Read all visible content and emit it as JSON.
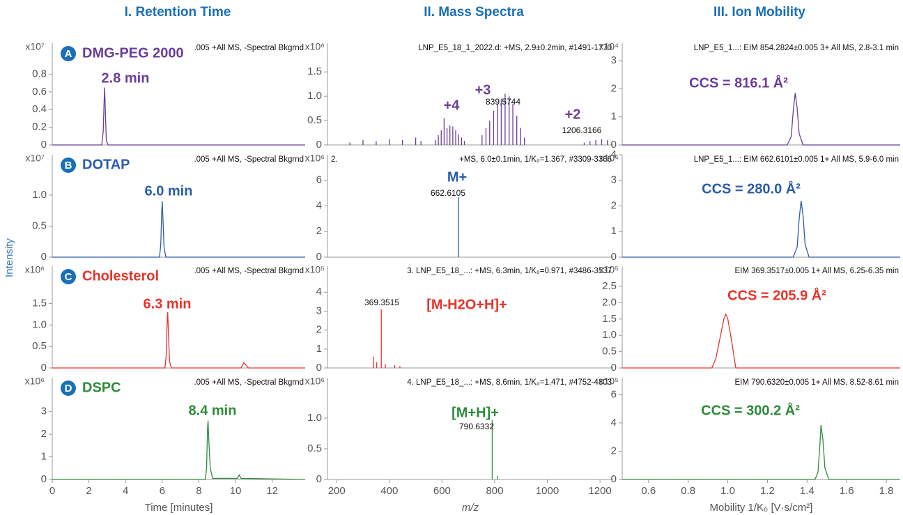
{
  "column_titles": [
    "I. Retention Time",
    "II. Mass Spectra",
    "III. Ion Mobility"
  ],
  "y_axis_label": "Intensity",
  "chart_data": [
    {
      "type": "line",
      "badge": "A",
      "title": "DMG-PEG 2000",
      "header": ".005 +All MS, -Spectral Bkgrnd",
      "y_multiplier": "x10⁷",
      "annotations": [
        "2.8 min"
      ],
      "color": "#6a3d9a",
      "x": [
        0,
        2.7,
        2.78,
        2.83,
        2.86,
        2.9,
        2.95,
        3.05,
        13.8
      ],
      "values": [
        0,
        0,
        0.15,
        0.5,
        0.65,
        0.35,
        0.05,
        0,
        0
      ],
      "xlim": [
        0,
        13.8
      ],
      "ylim": [
        0,
        1.15
      ],
      "yticks": [
        0,
        0.2,
        0.4,
        0.6,
        0.8
      ]
    },
    {
      "type": "line",
      "badge": "B",
      "title": "DOTAP",
      "header": ".005 +All MS, -Spectral Bkgrnd",
      "y_multiplier": "x10⁷",
      "annotations": [
        "6.0 min"
      ],
      "color": "#2a5caa",
      "x": [
        0,
        5.85,
        5.92,
        5.97,
        6.0,
        6.05,
        6.1,
        6.2,
        13.8
      ],
      "values": [
        0,
        0,
        0.2,
        0.7,
        0.9,
        0.55,
        0.15,
        0,
        0
      ],
      "xlim": [
        0,
        13.8
      ],
      "ylim": [
        0,
        1.65
      ],
      "yticks": [
        0,
        0.5,
        {
          "value": 1,
          "label": "1.0"
        }
      ]
    },
    {
      "type": "line",
      "badge": "C",
      "title": "Cholesterol",
      "header": ".005 +All MS, -Spectral Bkgrnd",
      "y_multiplier": "x10⁶",
      "annotations": [
        "6.3 min"
      ],
      "color": "#e8332a",
      "x": [
        0,
        6.15,
        6.22,
        6.27,
        6.3,
        6.35,
        6.4,
        6.5,
        10.3,
        10.45,
        10.55,
        10.7,
        13.8
      ],
      "values": [
        0,
        0,
        0.3,
        1.1,
        1.3,
        0.7,
        0.15,
        0,
        0,
        0.12,
        0.08,
        0,
        0
      ],
      "xlim": [
        0,
        13.8
      ],
      "ylim": [
        0,
        2.37
      ],
      "yticks": [
        0,
        0.5,
        {
          "value": 1,
          "label": "1.0"
        },
        1.5
      ]
    },
    {
      "type": "line",
      "badge": "D",
      "title": "DSPC",
      "header": ".005 +All MS, -Spectral Bkgrnd",
      "y_multiplier": "x10⁶",
      "annotations": [
        "8.4 min"
      ],
      "color": "#2e8b3a",
      "x": [
        0,
        8.35,
        8.42,
        8.47,
        8.5,
        8.55,
        8.62,
        8.75,
        10.1,
        10.2,
        10.3,
        13.8
      ],
      "values": [
        0,
        0,
        0.5,
        2.2,
        2.6,
        1.6,
        0.5,
        0.05,
        0.05,
        0.2,
        0.05,
        0
      ],
      "xlim": [
        0,
        13.8
      ],
      "ylim": [
        0,
        4.5
      ],
      "yticks": [
        0,
        1,
        2,
        3
      ],
      "xticks": [
        0,
        2,
        4,
        6,
        8,
        10,
        12
      ],
      "xlabel": "Time [minutes]"
    },
    {
      "type": "stem",
      "header": "LNP_E5_18_1_2022.d: +MS, 2.9±0.2min, #1491-1770",
      "y_multiplier": "x10⁶",
      "annotations": [
        "+3",
        "+4",
        "+2"
      ],
      "color": "#6a3d9a",
      "x": [
        250,
        300,
        350,
        400,
        450,
        500,
        520,
        575,
        586,
        597,
        608,
        619,
        630,
        641,
        652,
        663,
        674,
        685,
        752,
        767,
        781,
        796,
        811,
        825,
        839.5744,
        855,
        869,
        884,
        899,
        913,
        1140,
        1162,
        1184,
        1206.3166,
        1228,
        1245
      ],
      "values": [
        0.05,
        0.1,
        0.08,
        0.12,
        0.1,
        0.15,
        0.08,
        0.1,
        0.2,
        0.3,
        0.55,
        0.35,
        0.4,
        0.38,
        0.3,
        0.22,
        0.15,
        0.08,
        0.2,
        0.35,
        0.5,
        0.7,
        0.85,
        0.95,
        1.05,
        1.0,
        0.85,
        0.6,
        0.35,
        0.15,
        0.05,
        0.08,
        0.1,
        0.12,
        0.1,
        0.06
      ],
      "xlim": [
        165,
        1250
      ],
      "ylim": [
        0,
        2.09
      ],
      "yticks": [
        0,
        0.5,
        {
          "value": 1,
          "label": "1.0"
        },
        1.5
      ]
    },
    {
      "type": "stem",
      "header_left": "2.",
      "header": "+MS, 6.0±0.1min, 1/K₀=1.367, #3309-3366",
      "y_multiplier": "x10⁶",
      "annotations": [
        "M+"
      ],
      "color": "#2a5caa",
      "x": [
        662.6105
      ],
      "values": [
        4.7
      ],
      "xlim": [
        165,
        1250
      ],
      "ylim": [
        0,
        8
      ],
      "yticks": [
        0,
        2,
        4,
        6
      ]
    },
    {
      "type": "stem",
      "header": "3.  LNP_E5_18_...: +MS, 6.3min, 1/K₀=0.971, #3486-3537",
      "y_multiplier": "x10⁵",
      "annotations": [
        "[M-H2O+H]+"
      ],
      "color": "#e8332a",
      "x": [
        340,
        352,
        369.3515,
        385,
        420,
        440
      ],
      "values": [
        0.6,
        0.3,
        3.1,
        0.2,
        0.15,
        0.1
      ],
      "xlim": [
        165,
        1250
      ],
      "ylim": [
        0,
        5.37
      ],
      "yticks": [
        0,
        1,
        2,
        3,
        4
      ]
    },
    {
      "type": "stem",
      "header": "4.  LNP_E5_18_...: +MS, 8.6min, 1/K₀=1.471, #4752-4803",
      "y_multiplier": "x10⁶",
      "annotations": [
        "[M+H]+"
      ],
      "color": "#2e8b3a",
      "x": [
        790.6332,
        810
      ],
      "values": [
        0.97,
        0.06
      ],
      "xlim": [
        165,
        1250
      ],
      "ylim": [
        0,
        1.66
      ],
      "yticks": [
        0,
        0.5,
        {
          "value": 1,
          "label": "1.0"
        }
      ],
      "xticks": [
        200,
        400,
        600,
        800,
        1000,
        1200
      ],
      "xlabel": "m/z"
    },
    {
      "type": "line",
      "header": "LNP_E5_1...: EIM 854.2824±0.005 3+ All MS, 2.8-3.1 min",
      "y_multiplier": "x10⁴",
      "annotations": [
        "CCS = 816.1 Å²"
      ],
      "color": "#6a3d9a",
      "x": [
        0.467,
        1.3,
        1.32,
        1.33,
        1.34,
        1.35,
        1.36,
        1.38,
        1.87
      ],
      "values": [
        0,
        0,
        0.3,
        1.2,
        1.85,
        1.3,
        0.4,
        0,
        0
      ],
      "xlim": [
        0.467,
        1.87
      ],
      "ylim": [
        0,
        3.62
      ],
      "yticks": [
        0,
        1,
        2,
        3
      ]
    },
    {
      "type": "line",
      "header": "LNP_E5_1...: EIM 662.6101±0.005 1+ All MS, 5.9-6.0 min",
      "y_multiplier": "x10⁶",
      "annotations": [
        "CCS = 280.0 Å²"
      ],
      "color": "#2a5caa",
      "x": [
        0.467,
        1.33,
        1.35,
        1.36,
        1.37,
        1.38,
        1.39,
        1.41,
        1.87
      ],
      "values": [
        0,
        0,
        0.4,
        1.5,
        2.2,
        1.6,
        0.5,
        0,
        0
      ],
      "xlim": [
        0.467,
        1.87
      ],
      "ylim": [
        0,
        4
      ],
      "yticks": [
        0,
        1,
        2,
        3,
        4
      ]
    },
    {
      "type": "line",
      "header": "EIM 369.3517±0.005 1+ All MS, 6.25-6.35 min",
      "y_multiplier": "x10⁵",
      "annotations": [
        "CCS = 205.9 Å²"
      ],
      "color": "#e8332a",
      "x": [
        0.467,
        0.92,
        0.94,
        0.96,
        0.98,
        0.99,
        1.0,
        1.02,
        1.04,
        1.87
      ],
      "values": [
        0,
        0,
        0.3,
        0.9,
        1.5,
        1.65,
        1.5,
        0.8,
        0,
        0
      ],
      "xlim": [
        0.467,
        1.87
      ],
      "ylim": [
        0,
        3.12
      ],
      "yticks": [
        0,
        0.5,
        {
          "value": 1,
          "label": "1.0"
        },
        1.5,
        {
          "value": 2,
          "label": "2.0"
        },
        2.5
      ]
    },
    {
      "type": "line",
      "header": "EIM 790.6320±0.005 1+ All MS, 8.52-8.61 min",
      "y_multiplier": "x10⁵",
      "annotations": [
        "CCS = 300.2 Å²"
      ],
      "color": "#2e8b3a",
      "x": [
        0.467,
        1.44,
        1.455,
        1.465,
        1.47,
        1.48,
        1.49,
        1.51,
        1.87
      ],
      "values": [
        0,
        0,
        0.5,
        2.5,
        3.85,
        2.8,
        0.8,
        0,
        0
      ],
      "xlim": [
        0.467,
        1.87
      ],
      "ylim": [
        0,
        7.2
      ],
      "yticks": [
        0,
        2,
        4,
        6
      ],
      "xticks": [
        0.6,
        0.8,
        {
          "value": 1,
          "label": "1.0"
        },
        1.2,
        1.4,
        1.6,
        1.8
      ],
      "xlabel": "Mobility 1/K₀ [V·s/cm²]"
    }
  ]
}
